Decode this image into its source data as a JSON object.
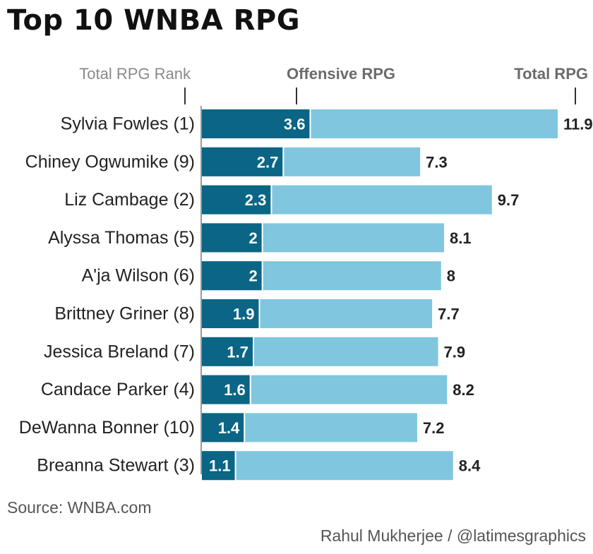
{
  "title": "Top 10 WNBA RPG",
  "headers": {
    "rank": "Total RPG Rank",
    "offensive": "Offensive RPG",
    "total": "Total RPG"
  },
  "source": "Source: WNBA.com",
  "credit": "Rahul Mukherjee / @latimesgraphics",
  "colors": {
    "offensive": "#0b6584",
    "total": "#80c6de",
    "axis": "#999999",
    "text": "#222222"
  },
  "chart_data": {
    "type": "bar",
    "orientation": "horizontal",
    "stacked": false,
    "categories": [
      "Sylvia Fowles (1)",
      "Chiney Ogwumike (9)",
      "Liz Cambage (2)",
      "Alyssa Thomas (5)",
      "A'ja Wilson (6)",
      "Brittney Griner (8)",
      "Jessica Breland (7)",
      "Candace Parker (4)",
      "DeWanna Bonner (10)",
      "Breanna Stewart (3)"
    ],
    "series": [
      {
        "name": "Offensive RPG",
        "values": [
          3.6,
          2.7,
          2.3,
          2,
          2,
          1.9,
          1.7,
          1.6,
          1.4,
          1.1
        ]
      },
      {
        "name": "Total RPG",
        "values": [
          11.9,
          7.3,
          9.7,
          8.1,
          8,
          7.7,
          7.9,
          8.2,
          7.2,
          8.4
        ]
      }
    ],
    "xlim": [
      0,
      11.9
    ],
    "grid": false
  }
}
